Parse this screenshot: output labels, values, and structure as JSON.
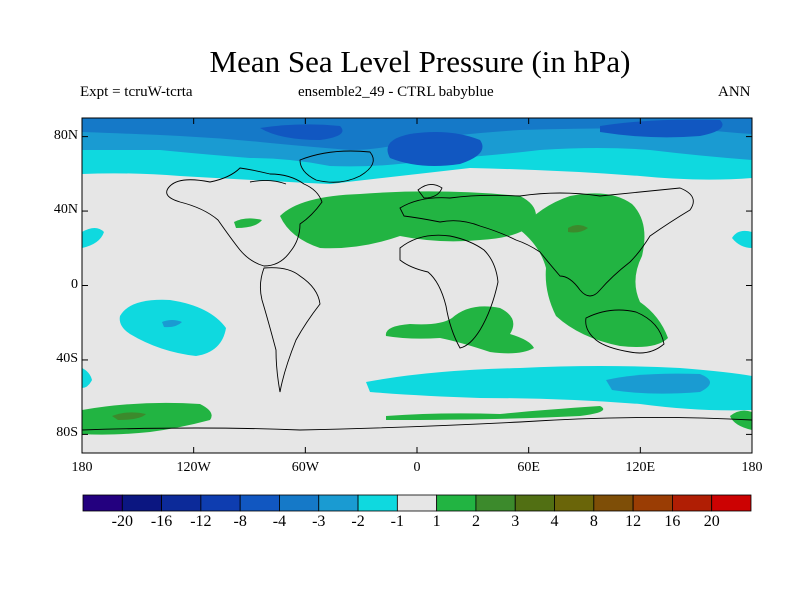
{
  "title": "Mean Sea Level Pressure (in hPa)",
  "left_label": "Expt = tcruW-tcrta",
  "center_label": "ensemble2_49 - CTRL babyblue",
  "right_label": "ANN",
  "map": {
    "lon_range": [
      -180,
      180
    ],
    "lat_range": [
      -90,
      90
    ],
    "y_ticks": [
      {
        "lat": 80,
        "label": "80N"
      },
      {
        "lat": 40,
        "label": "40N"
      },
      {
        "lat": 0,
        "label": "0"
      },
      {
        "lat": -40,
        "label": "40S"
      },
      {
        "lat": -80,
        "label": "80S"
      }
    ],
    "x_ticks": [
      {
        "lon": -180,
        "label": "180"
      },
      {
        "lon": -120,
        "label": "120W"
      },
      {
        "lon": -60,
        "label": "60W"
      },
      {
        "lon": 0,
        "label": "0"
      },
      {
        "lon": 60,
        "label": "60E"
      },
      {
        "lon": 120,
        "label": "120E"
      },
      {
        "lon": 180,
        "label": "180"
      }
    ]
  },
  "colorbar": {
    "colors": [
      "#23007f",
      "#0b1681",
      "#0c2a99",
      "#0e3db0",
      "#1157c1",
      "#1579c8",
      "#1a9bd2",
      "#0fd9df",
      "#e6e6e6",
      "#22b442",
      "#3c8a2c",
      "#516f13",
      "#6a6509",
      "#7e4e07",
      "#9a3d04",
      "#b01e04",
      "#cc0202"
    ],
    "labels": [
      "-20",
      "-16",
      "-12",
      "-8",
      "-4",
      "-3",
      "-2",
      "-1",
      "1",
      "2",
      "3",
      "4",
      "8",
      "12",
      "16",
      "20"
    ]
  }
}
